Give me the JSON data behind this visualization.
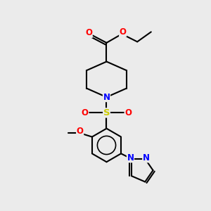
{
  "bg_color": "#ebebeb",
  "bond_color": "#000000",
  "bond_width": 1.5,
  "atom_colors": {
    "O": "#ff0000",
    "N": "#0000ff",
    "S": "#cccc00",
    "C": "#000000"
  },
  "font_size_atom": 8.5,
  "fig_width": 3.0,
  "fig_height": 3.0,
  "dpi": 100,
  "xlim": [
    0,
    10
  ],
  "ylim": [
    0,
    10
  ]
}
